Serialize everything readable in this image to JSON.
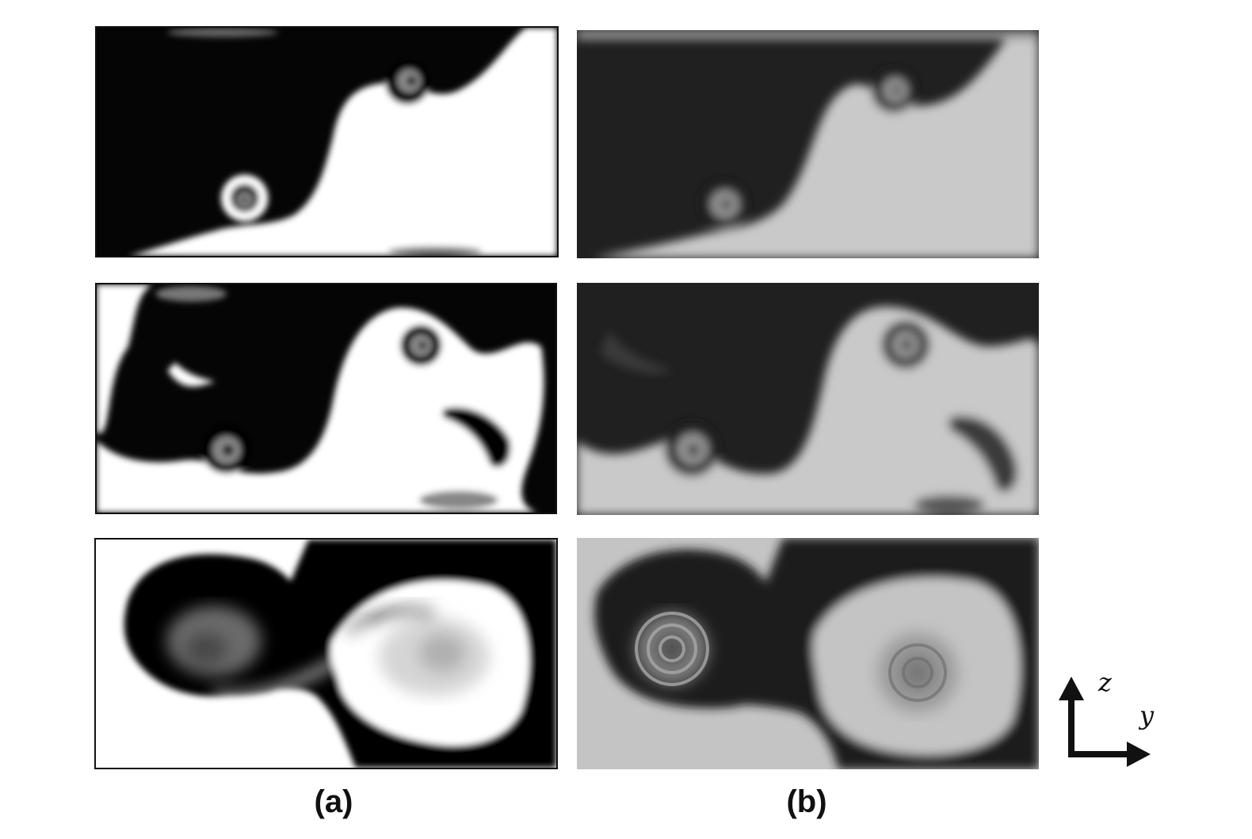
{
  "figure": {
    "label_a": "(a)",
    "label_b": "(b)",
    "axis_z": "z",
    "axis_y": "y"
  },
  "colors": {
    "fluid_dark": "#050505",
    "fluid_light_sim": "#ffffff",
    "fluid_light_exp": "#c9c9c9",
    "frame": "#111111"
  }
}
